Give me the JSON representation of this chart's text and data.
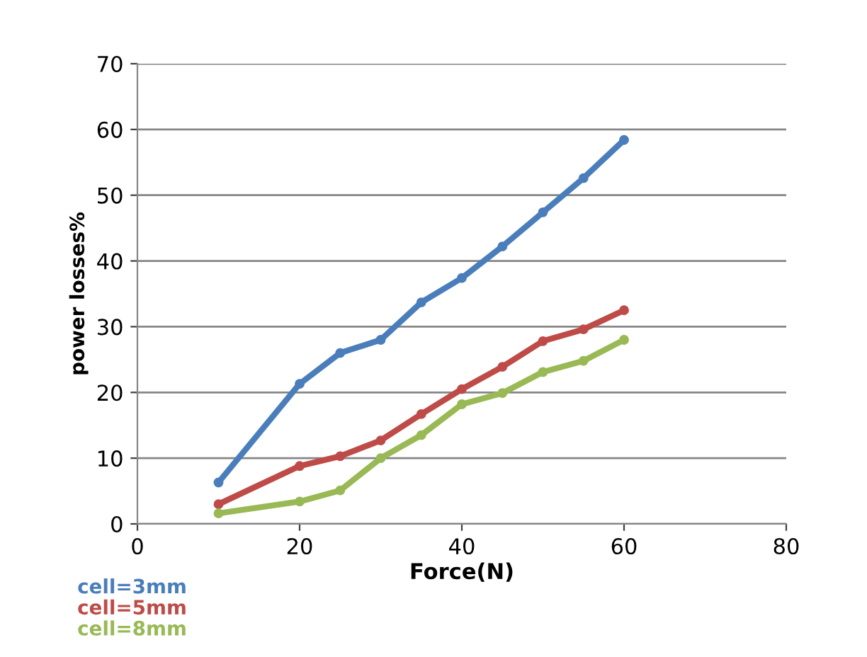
{
  "chart_data": {
    "type": "line",
    "xlabel": "Force(N)",
    "ylabel": "power losses%",
    "x": [
      10,
      20,
      25,
      30,
      35,
      40,
      45,
      50,
      55,
      60
    ],
    "series": [
      {
        "name": "cell=3mm",
        "color": "#4a7ebb",
        "values": [
          6.3,
          21.3,
          26,
          28,
          33.7,
          37.4,
          42.2,
          47.4,
          52.6,
          58.4
        ]
      },
      {
        "name": "cell=5mm",
        "color": "#be4b48",
        "values": [
          3.0,
          8.8,
          10.3,
          12.7,
          16.7,
          20.5,
          23.9,
          27.8,
          29.6,
          32.5
        ]
      },
      {
        "name": "cell=8mm",
        "color": "#98b954",
        "values": [
          1.6,
          3.4,
          5.1,
          10,
          13.5,
          18.2,
          19.9,
          23.1,
          24.8,
          28
        ]
      }
    ],
    "xlim": [
      0,
      80
    ],
    "xticks": [
      0,
      20,
      40,
      60,
      80
    ],
    "ylim": [
      0,
      70
    ],
    "yticks": [
      0,
      10,
      20,
      30,
      40,
      50,
      60,
      70
    ],
    "grid": "y",
    "legend": "bottom left",
    "marker": "circle",
    "line_style": "solid"
  }
}
